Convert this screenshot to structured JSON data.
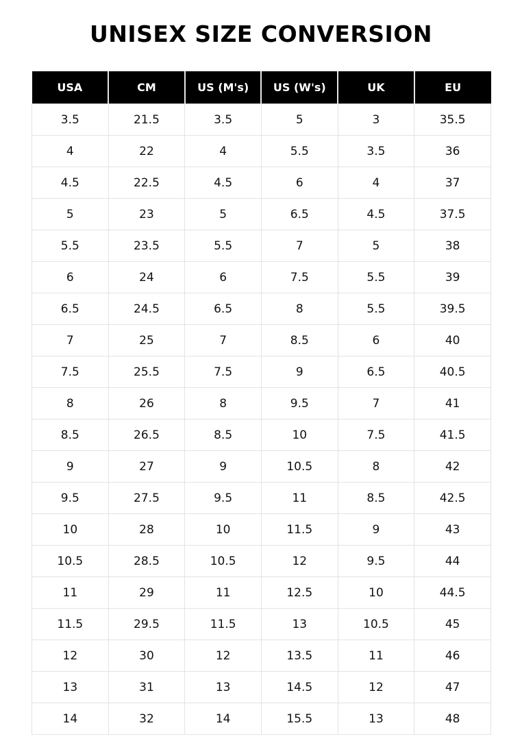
{
  "title": "UNISEX SIZE CONVERSION",
  "table": {
    "headers": [
      "USA",
      "CM",
      "US (M's)",
      "US (W's)",
      "UK",
      "EU"
    ],
    "rows": [
      [
        "3.5",
        "21.5",
        "3.5",
        "5",
        "3",
        "35.5"
      ],
      [
        "4",
        "22",
        "4",
        "5.5",
        "3.5",
        "36"
      ],
      [
        "4.5",
        "22.5",
        "4.5",
        "6",
        "4",
        "37"
      ],
      [
        "5",
        "23",
        "5",
        "6.5",
        "4.5",
        "37.5"
      ],
      [
        "5.5",
        "23.5",
        "5.5",
        "7",
        "5",
        "38"
      ],
      [
        "6",
        "24",
        "6",
        "7.5",
        "5.5",
        "39"
      ],
      [
        "6.5",
        "24.5",
        "6.5",
        "8",
        "5.5",
        "39.5"
      ],
      [
        "7",
        "25",
        "7",
        "8.5",
        "6",
        "40"
      ],
      [
        "7.5",
        "25.5",
        "7.5",
        "9",
        "6.5",
        "40.5"
      ],
      [
        "8",
        "26",
        "8",
        "9.5",
        "7",
        "41"
      ],
      [
        "8.5",
        "26.5",
        "8.5",
        "10",
        "7.5",
        "41.5"
      ],
      [
        "9",
        "27",
        "9",
        "10.5",
        "8",
        "42"
      ],
      [
        "9.5",
        "27.5",
        "9.5",
        "11",
        "8.5",
        "42.5"
      ],
      [
        "10",
        "28",
        "10",
        "11.5",
        "9",
        "43"
      ],
      [
        "10.5",
        "28.5",
        "10.5",
        "12",
        "9.5",
        "44"
      ],
      [
        "11",
        "29",
        "11",
        "12.5",
        "10",
        "44.5"
      ],
      [
        "11.5",
        "29.5",
        "11.5",
        "13",
        "10.5",
        "45"
      ],
      [
        "12",
        "30",
        "12",
        "13.5",
        "11",
        "46"
      ],
      [
        "13",
        "31",
        "13",
        "14.5",
        "12",
        "47"
      ],
      [
        "14",
        "32",
        "14",
        "15.5",
        "13",
        "48"
      ]
    ]
  },
  "colors": {
    "header_bg": "#000000",
    "header_text": "#ffffff",
    "grid": "#e3e3e3"
  }
}
